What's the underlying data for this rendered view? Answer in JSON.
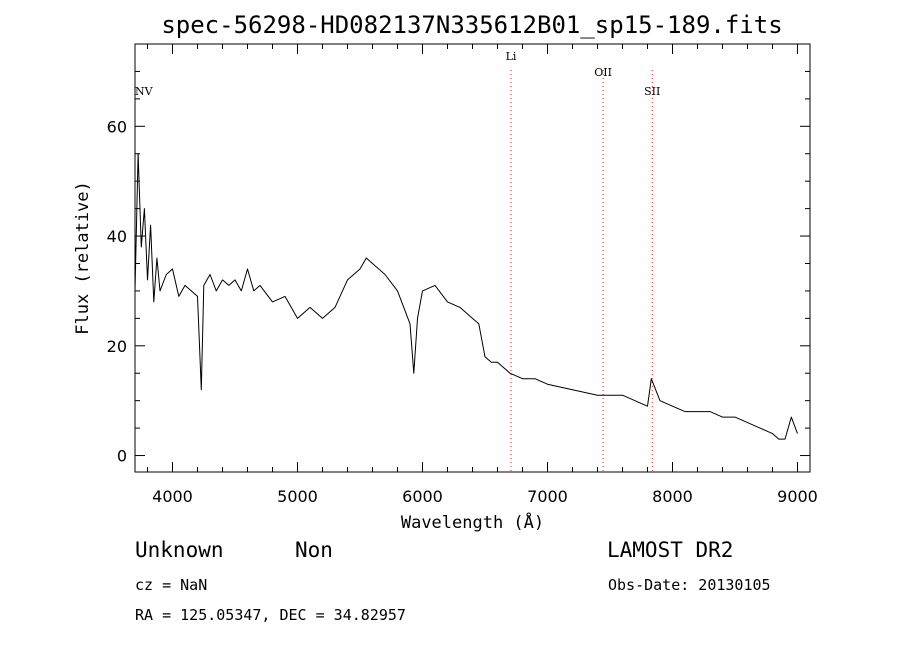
{
  "chart_data": {
    "type": "line",
    "title": "spec-56298-HD082137N335612B01_sp15-189.fits",
    "xlabel": "Wavelength (Å)",
    "ylabel": "Flux (relative)",
    "xlim": [
      3700,
      9100
    ],
    "ylim": [
      -3,
      75
    ],
    "xticks": [
      4000,
      5000,
      6000,
      7000,
      8000,
      9000
    ],
    "yticks": [
      0,
      20,
      40,
      60
    ],
    "grid": false,
    "series_color": "#000000",
    "line_marker_color": "#cc2222",
    "series": [
      {
        "x": [
          3700,
          3725,
          3750,
          3775,
          3800,
          3825,
          3850,
          3875,
          3900,
          3950,
          4000,
          4050,
          4100,
          4150,
          4200,
          4230,
          4250,
          4300,
          4350,
          4400,
          4450,
          4500,
          4550,
          4600,
          4650,
          4700,
          4800,
          4900,
          5000,
          5100,
          5200,
          5300,
          5400,
          5500,
          5550,
          5600,
          5700,
          5800,
          5900,
          5930,
          5960,
          6000,
          6100,
          6200,
          6300,
          6400,
          6450,
          6500,
          6550,
          6600,
          6700,
          6800,
          6900,
          7000,
          7200,
          7400,
          7600,
          7700,
          7800,
          7830,
          7900,
          8000,
          8100,
          8200,
          8300,
          8400,
          8500,
          8600,
          8700,
          8800,
          8850,
          8900,
          8950,
          9000
        ],
        "y": [
          30,
          55,
          38,
          45,
          32,
          42,
          28,
          36,
          30,
          33,
          34,
          29,
          31,
          30,
          29,
          12,
          31,
          33,
          30,
          32,
          31,
          32,
          30,
          34,
          30,
          31,
          28,
          29,
          25,
          27,
          25,
          27,
          32,
          34,
          36,
          35,
          33,
          30,
          24,
          15,
          25,
          30,
          31,
          28,
          27,
          25,
          24,
          18,
          17,
          17,
          15,
          14,
          14,
          13,
          12,
          11,
          11,
          10,
          9,
          14,
          10,
          9,
          8,
          8,
          8,
          7,
          7,
          6,
          5,
          4,
          3,
          3,
          7,
          4
        ]
      }
    ],
    "spectral_lines": [
      {
        "name": "Li",
        "wavelength": 6708
      },
      {
        "name": "OII",
        "wavelength": 7445
      },
      {
        "name": "SII",
        "wavelength": 7838
      },
      {
        "name": "NV",
        "wavelength": 3700
      }
    ]
  },
  "info": {
    "object_type": "Unknown",
    "subclass": "Non",
    "survey": "LAMOST DR2",
    "cz": "cz = NaN",
    "obs_date": "Obs-Date: 20130105",
    "coords": "RA = 125.05347, DEC =  34.82957"
  }
}
